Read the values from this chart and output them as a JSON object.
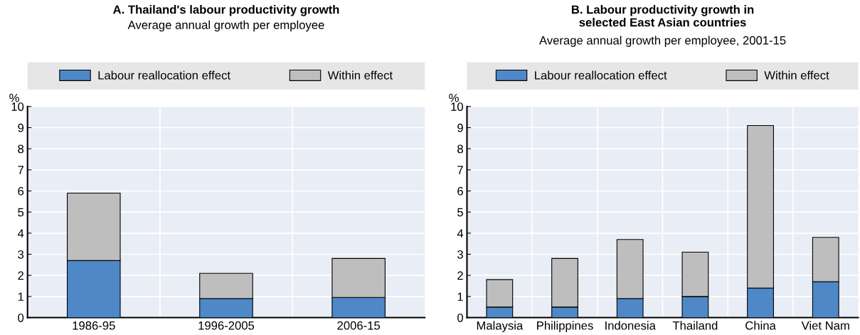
{
  "chart_data": [
    {
      "type": "bar",
      "title": "A. Thailand's labour productivity growth",
      "subtitle": "Average annual growth per employee",
      "ylabel": "%",
      "categories": [
        "1986-95",
        "1996-2005",
        "2006-15"
      ],
      "stacked": true,
      "series": [
        {
          "name": "Labour reallocation effect",
          "color": "#4e88c7",
          "values": [
            2.7,
            0.9,
            0.95
          ]
        },
        {
          "name": "Within effect",
          "color": "#bebebe",
          "values": [
            3.2,
            1.2,
            1.85
          ]
        }
      ],
      "ylim": [
        0,
        10
      ],
      "yticks": [
        0,
        1,
        2,
        3,
        4,
        5,
        6,
        7,
        8,
        9,
        10
      ],
      "grid": true,
      "legend": "top"
    },
    {
      "type": "bar",
      "title": "B. Labour productivity growth in\nselected East Asian countries",
      "subtitle": "Average annual growth per employee, 2001-15",
      "ylabel": "%",
      "categories": [
        "Malaysia",
        "Philippines",
        "Indonesia",
        "Thailand",
        "China",
        "Viet Nam"
      ],
      "stacked": true,
      "series": [
        {
          "name": "Labour reallocation effect",
          "color": "#4e88c7",
          "values": [
            0.5,
            0.5,
            0.9,
            1.0,
            1.4,
            1.7
          ]
        },
        {
          "name": "Within effect",
          "color": "#bebebe",
          "values": [
            1.3,
            2.3,
            2.8,
            2.1,
            7.7,
            2.1
          ]
        }
      ],
      "ylim": [
        0,
        10
      ],
      "yticks": [
        0,
        1,
        2,
        3,
        4,
        5,
        6,
        7,
        8,
        9,
        10
      ],
      "grid": true,
      "legend": "top"
    }
  ]
}
